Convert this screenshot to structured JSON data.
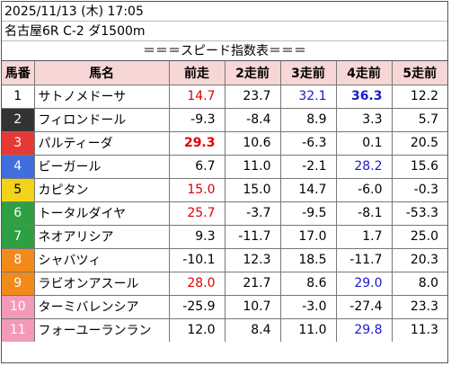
{
  "header": {
    "datetime": "2025/11/13 (木) 17:05",
    "race": "名古屋6R C-2 ダ1500m"
  },
  "banner": "＝＝＝スピード指数表＝＝＝",
  "columns": [
    "馬番",
    "馬名",
    "前走",
    "2走前",
    "3走前",
    "4走前",
    "5走前"
  ],
  "colors": {
    "header_bg": "#f7d6d6",
    "highlight_red": "#e00000",
    "highlight_blue": "#1a1acc",
    "frame": [
      "#ffffff",
      "#333333",
      "#e53935",
      "#3f6fdc",
      "#f2d21b",
      "#2ea043",
      "#f28a1a",
      "#f39ab8"
    ]
  },
  "rows": [
    {
      "num": "1",
      "frame": 1,
      "name": "サトノメドーサ",
      "vals": [
        "14.7",
        "23.7",
        "32.1",
        "36.3",
        "12.2"
      ],
      "styles": [
        "red",
        "",
        "blue",
        "blue bold",
        ""
      ]
    },
    {
      "num": "2",
      "frame": 2,
      "name": "フィロンドール",
      "vals": [
        "-9.3",
        "-8.4",
        "8.9",
        "3.3",
        "5.7"
      ],
      "styles": [
        "",
        "",
        "",
        "",
        ""
      ]
    },
    {
      "num": "3",
      "frame": 3,
      "name": "パルティーダ",
      "vals": [
        "29.3",
        "10.6",
        "-6.3",
        "0.1",
        "20.5"
      ],
      "styles": [
        "red bold",
        "",
        "",
        "",
        ""
      ]
    },
    {
      "num": "4",
      "frame": 4,
      "name": "ビーガール",
      "vals": [
        "6.7",
        "11.0",
        "-2.1",
        "28.2",
        "15.6"
      ],
      "styles": [
        "",
        "",
        "",
        "blue",
        ""
      ]
    },
    {
      "num": "5",
      "frame": 5,
      "name": "カピタン",
      "vals": [
        "15.0",
        "15.0",
        "14.7",
        "-6.0",
        "-0.3"
      ],
      "styles": [
        "red",
        "",
        "",
        "",
        ""
      ]
    },
    {
      "num": "6",
      "frame": 6,
      "name": "トータルダイヤ",
      "vals": [
        "25.7",
        "-3.7",
        "-9.5",
        "-8.1",
        "-53.3"
      ],
      "styles": [
        "red",
        "",
        "",
        "",
        ""
      ]
    },
    {
      "num": "7",
      "frame": 6,
      "name": "ネオアリシア",
      "vals": [
        "9.3",
        "-11.7",
        "17.0",
        "1.7",
        "25.0"
      ],
      "styles": [
        "",
        "",
        "",
        "",
        ""
      ]
    },
    {
      "num": "8",
      "frame": 7,
      "name": "シャバツィ",
      "vals": [
        "-10.1",
        "12.3",
        "18.5",
        "-11.7",
        "20.3"
      ],
      "styles": [
        "",
        "",
        "",
        "",
        ""
      ]
    },
    {
      "num": "9",
      "frame": 7,
      "name": "ラビオンアスール",
      "vals": [
        "28.0",
        "21.7",
        "8.6",
        "29.0",
        "8.0"
      ],
      "styles": [
        "red",
        "",
        "",
        "blue",
        ""
      ]
    },
    {
      "num": "10",
      "frame": 8,
      "name": "ターミバレンシア",
      "vals": [
        "-25.9",
        "10.7",
        "-3.0",
        "-27.4",
        "23.3"
      ],
      "styles": [
        "",
        "",
        "",
        "",
        ""
      ]
    },
    {
      "num": "11",
      "frame": 8,
      "name": "フォーユーランラン",
      "vals": [
        "12.0",
        "8.4",
        "11.0",
        "29.8",
        "11.3"
      ],
      "styles": [
        "",
        "",
        "",
        "blue",
        ""
      ]
    }
  ]
}
